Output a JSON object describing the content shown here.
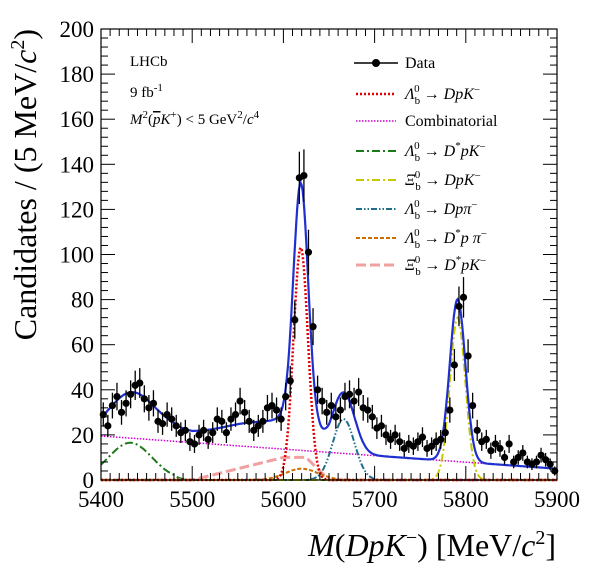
{
  "chart_data": {
    "type": "scatter",
    "title": "",
    "xlabel": "M(DpK−) [MeV/c2]",
    "ylabel": "Candidates / (5 MeV/c2)",
    "xlim": [
      5400,
      5900
    ],
    "ylim": [
      0,
      200
    ],
    "xticks": [
      "5400",
      "5500",
      "5600",
      "5700",
      "5800",
      "5900"
    ],
    "yticks": [
      "0",
      "20",
      "40",
      "60",
      "80",
      "100",
      "120",
      "140",
      "160",
      "180",
      "200"
    ],
    "grid": false,
    "legend_position": "top-right",
    "annotations": {
      "experiment": "LHCb",
      "luminosity": "9 fb-1",
      "cut": "M2(pK+) < 5 GeV2/c4"
    },
    "legend": [
      {
        "label": "Data",
        "color": "#000000",
        "style": "marker-line"
      },
      {
        "label": "Λb0 → DpK−",
        "color": "#e00000",
        "style": "dotted"
      },
      {
        "label": "Combinatorial",
        "color": "#d400d4",
        "style": "dotted-fine"
      },
      {
        "label": "Λb0 → D*pK−",
        "color": "#1a7a1a",
        "style": "dashdot"
      },
      {
        "label": "Ξb0 → DpK−",
        "color": "#c8c800",
        "style": "dashdot"
      },
      {
        "label": "Λb0 → Dpπ−",
        "color": "#1f6f8b",
        "style": "dashdotdot"
      },
      {
        "label": "Λb0 → D*pπ−",
        "color": "#c87000",
        "style": "dashed"
      },
      {
        "label": "Ξb0 → D*pK−",
        "color": "#f0a0a0",
        "style": "longdash"
      }
    ],
    "data_points": {
      "x": [
        5402.5,
        5407.5,
        5412.5,
        5417.5,
        5422.5,
        5427.5,
        5432.5,
        5437.5,
        5442.5,
        5447.5,
        5452.5,
        5457.5,
        5462.5,
        5467.5,
        5472.5,
        5477.5,
        5482.5,
        5487.5,
        5492.5,
        5497.5,
        5502.5,
        5507.5,
        5512.5,
        5517.5,
        5522.5,
        5527.5,
        5532.5,
        5537.5,
        5542.5,
        5547.5,
        5552.5,
        5557.5,
        5562.5,
        5567.5,
        5572.5,
        5577.5,
        5582.5,
        5587.5,
        5592.5,
        5597.5,
        5602.5,
        5607.5,
        5612.5,
        5617.5,
        5622.5,
        5627.5,
        5632.5,
        5637.5,
        5642.5,
        5647.5,
        5652.5,
        5657.5,
        5662.5,
        5667.5,
        5672.5,
        5677.5,
        5682.5,
        5687.5,
        5692.5,
        5697.5,
        5702.5,
        5707.5,
        5712.5,
        5717.5,
        5722.5,
        5727.5,
        5732.5,
        5737.5,
        5742.5,
        5747.5,
        5752.5,
        5757.5,
        5762.5,
        5767.5,
        5772.5,
        5777.5,
        5782.5,
        5787.5,
        5792.5,
        5797.5,
        5802.5,
        5807.5,
        5812.5,
        5817.5,
        5822.5,
        5827.5,
        5832.5,
        5837.5,
        5842.5,
        5847.5,
        5852.5,
        5857.5,
        5862.5,
        5867.5,
        5872.5,
        5877.5,
        5882.5,
        5887.5,
        5892.5,
        5897.5
      ],
      "y": [
        29,
        24,
        33,
        37,
        30,
        34,
        38,
        42,
        43,
        36,
        32,
        34,
        26,
        25,
        29,
        27,
        24,
        21,
        22,
        17,
        16,
        20,
        22,
        18,
        21,
        27,
        26,
        21,
        27,
        29,
        35,
        30,
        26,
        22,
        24,
        26,
        32,
        33,
        31,
        27,
        37,
        44,
        71,
        134,
        135,
        101,
        68,
        40,
        35,
        30,
        33,
        28,
        31,
        37,
        38,
        35,
        39,
        32,
        31,
        28,
        23,
        24,
        20,
        18,
        20,
        17,
        14,
        16,
        15,
        17,
        19,
        14,
        15,
        17,
        18,
        21,
        31,
        51,
        77,
        81,
        55,
        33,
        22,
        17,
        18,
        13,
        16,
        14,
        10,
        16,
        8,
        10,
        12,
        8,
        7,
        8,
        11,
        9,
        7,
        4
      ],
      "yerr": [
        5.4,
        4.9,
        5.7,
        6.1,
        5.5,
        5.8,
        6.2,
        6.5,
        6.6,
        6.0,
        5.7,
        5.8,
        5.1,
        5.0,
        5.4,
        5.2,
        4.9,
        4.6,
        4.7,
        4.1,
        4.0,
        4.5,
        4.7,
        4.2,
        4.6,
        5.2,
        5.1,
        4.6,
        5.2,
        5.4,
        5.9,
        5.5,
        5.1,
        4.7,
        4.9,
        5.1,
        5.7,
        5.7,
        5.6,
        5.2,
        6.1,
        6.6,
        8.4,
        11.6,
        11.6,
        10.0,
        8.2,
        6.3,
        5.9,
        5.5,
        5.7,
        5.3,
        5.6,
        6.1,
        6.2,
        5.9,
        6.2,
        5.7,
        5.6,
        5.3,
        4.8,
        4.9,
        4.5,
        4.2,
        4.5,
        4.1,
        3.7,
        4.0,
        3.9,
        4.1,
        4.4,
        3.7,
        3.9,
        4.1,
        4.2,
        4.6,
        5.6,
        7.1,
        8.8,
        9.0,
        7.4,
        5.7,
        4.7,
        4.1,
        4.2,
        3.6,
        4.0,
        3.7,
        3.2,
        4.0,
        2.8,
        3.2,
        3.5,
        2.8,
        2.6,
        2.8,
        3.3,
        3.0,
        2.6,
        2.0
      ]
    }
  }
}
